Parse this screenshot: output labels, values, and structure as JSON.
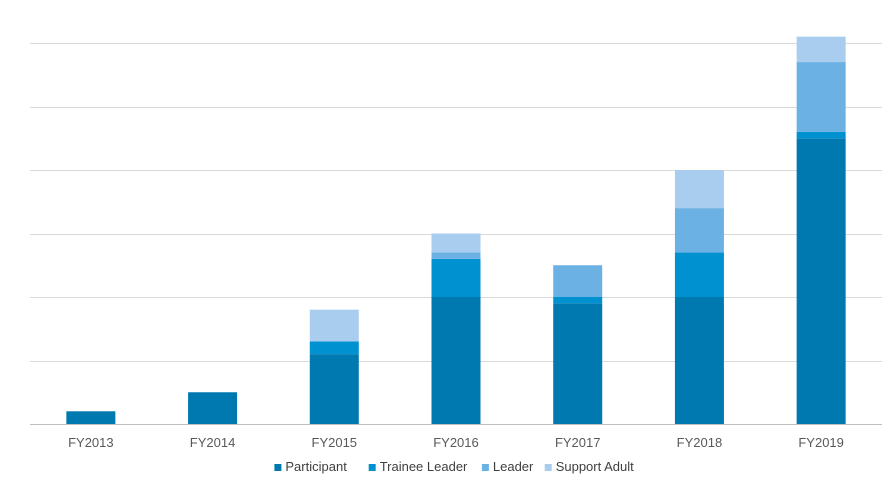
{
  "chart_data": {
    "type": "bar",
    "stacked": true,
    "title": "",
    "xlabel": "",
    "ylabel": "",
    "categories": [
      "FY2013",
      "FY2014",
      "FY2015",
      "FY2016",
      "FY2017",
      "FY2018",
      "FY2019"
    ],
    "ylim": [
      0,
      6
    ],
    "y_gridlines": [
      0,
      1,
      2,
      3,
      4,
      5,
      6
    ],
    "y_tick_labels_visible": false,
    "grid": true,
    "legend_position": "bottom",
    "series": [
      {
        "name": "Participant",
        "color": "#0078B0",
        "values": [
          0.2,
          0.5,
          1.1,
          2.0,
          1.9,
          2.0,
          4.5
        ]
      },
      {
        "name": "Trainee Leader",
        "color": "#0092D0",
        "values": [
          0.0,
          0.0,
          0.2,
          0.6,
          0.1,
          0.7,
          0.1
        ]
      },
      {
        "name": "Leader",
        "color": "#6CB1E3",
        "values": [
          0.0,
          0.0,
          0.0,
          0.1,
          0.5,
          0.7,
          1.1
        ]
      },
      {
        "name": "Support Adult",
        "color": "#A9CDEE",
        "values": [
          0.0,
          0.0,
          0.5,
          0.3,
          0.0,
          0.6,
          0.4
        ]
      }
    ]
  }
}
